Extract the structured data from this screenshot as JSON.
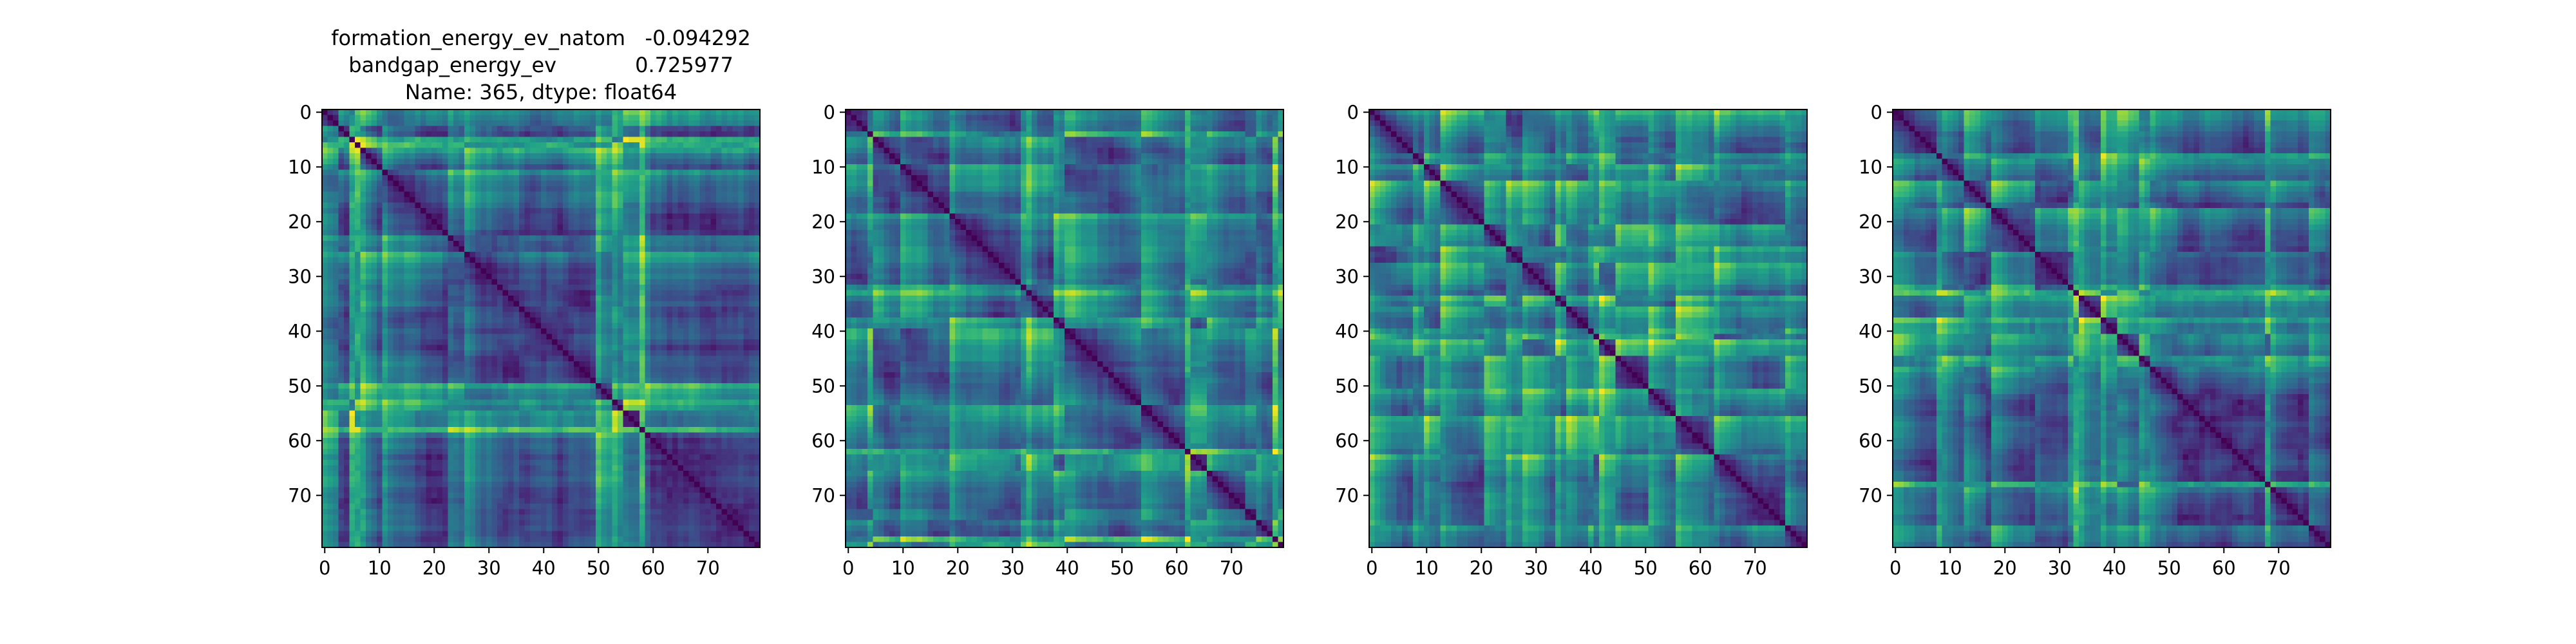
{
  "figure": {
    "title_lines": [
      "formation_energy_ev_natom   -0.094292",
      "bandgap_energy_ev            0.725977",
      "Name: 365, dtype: float64"
    ]
  },
  "chart_data": [
    {
      "type": "heatmap",
      "colormap": "viridis",
      "matrix_size": 80,
      "xlim": [
        0,
        79
      ],
      "ylim": [
        79,
        0
      ],
      "xticks": [
        0,
        10,
        20,
        30,
        40,
        50,
        60,
        70
      ],
      "yticks": [
        0,
        10,
        20,
        30,
        40,
        50,
        60,
        70
      ],
      "diagonal_value": 0,
      "seed": 11
    },
    {
      "type": "heatmap",
      "colormap": "viridis",
      "matrix_size": 80,
      "xlim": [
        0,
        79
      ],
      "ylim": [
        79,
        0
      ],
      "xticks": [
        0,
        10,
        20,
        30,
        40,
        50,
        60,
        70
      ],
      "yticks": [
        0,
        10,
        20,
        30,
        40,
        50,
        60,
        70
      ],
      "diagonal_value": 0,
      "seed": 23
    },
    {
      "type": "heatmap",
      "colormap": "viridis",
      "matrix_size": 80,
      "xlim": [
        0,
        79
      ],
      "ylim": [
        79,
        0
      ],
      "xticks": [
        0,
        10,
        20,
        30,
        40,
        50,
        60,
        70
      ],
      "yticks": [
        0,
        10,
        20,
        30,
        40,
        50,
        60,
        70
      ],
      "diagonal_value": 0,
      "seed": 37
    },
    {
      "type": "heatmap",
      "colormap": "viridis",
      "matrix_size": 80,
      "xlim": [
        0,
        79
      ],
      "ylim": [
        79,
        0
      ],
      "xticks": [
        0,
        10,
        20,
        30,
        40,
        50,
        60,
        70
      ],
      "yticks": [
        0,
        10,
        20,
        30,
        40,
        50,
        60,
        70
      ],
      "diagonal_value": 0,
      "seed": 53
    }
  ]
}
